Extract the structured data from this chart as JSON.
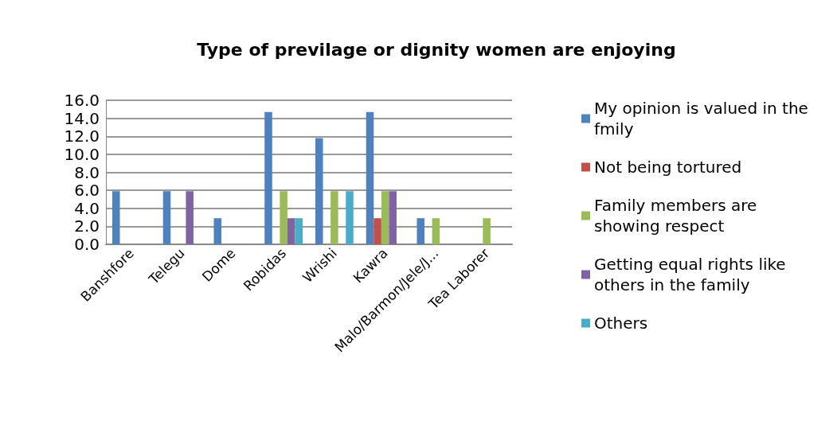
{
  "chart_data": {
    "type": "bar",
    "title": "Type of previlage or dignity women are enjoying",
    "categories": [
      "Banshfore",
      "Telegu",
      "Dome",
      "Robidas",
      "Wrishi",
      "Kawra",
      "Malo/Barmon/Jele/J...",
      "Tea Laborer"
    ],
    "series": [
      {
        "name": "My opinion is valued in the fmily",
        "color": "#4f81bd",
        "values": [
          5.9,
          5.9,
          2.9,
          14.7,
          11.8,
          14.7,
          2.9,
          0
        ]
      },
      {
        "name": "Not being tortured",
        "color": "#c0504d",
        "values": [
          0,
          0,
          0,
          0,
          0,
          2.9,
          0,
          0
        ]
      },
      {
        "name": "Family members are showing respect",
        "color": "#9bbb59",
        "values": [
          0,
          0,
          0,
          5.9,
          5.9,
          5.9,
          2.9,
          2.9
        ]
      },
      {
        "name": "Getting equal rights like others in the family",
        "color": "#8064a2",
        "values": [
          0,
          5.9,
          0,
          2.9,
          0,
          5.9,
          0,
          0
        ]
      },
      {
        "name": "Others",
        "color": "#4bacc6",
        "values": [
          0,
          0,
          0,
          2.9,
          5.9,
          0,
          0,
          0
        ]
      }
    ],
    "ylim": [
      0,
      16
    ],
    "yticks": [
      {
        "value": 0,
        "label": "0.0"
      },
      {
        "value": 2,
        "label": "2.0"
      },
      {
        "value": 4,
        "label": "4.0"
      },
      {
        "value": 6,
        "label": "6.0"
      },
      {
        "value": 8,
        "label": "8.0"
      },
      {
        "value": 10,
        "label": "10.0"
      },
      {
        "value": 12,
        "label": "12.0"
      },
      {
        "value": 14,
        "label": "14.0"
      },
      {
        "value": 16,
        "label": "16.0"
      }
    ],
    "grid": "y",
    "legend": "right"
  }
}
